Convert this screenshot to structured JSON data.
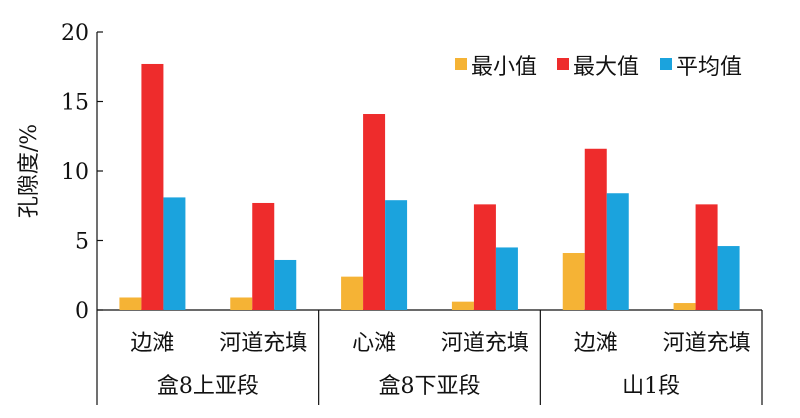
{
  "chart_data": {
    "type": "bar",
    "ylabel": "孔隙度/%",
    "ylim": [
      0,
      20
    ],
    "yticks": [
      0,
      5,
      10,
      15,
      20
    ],
    "grid": false,
    "legend_position": "top-right",
    "categories": [
      "边滩",
      "河道充填",
      "心滩",
      "河道充填",
      "边滩",
      "河道充填"
    ],
    "groups": [
      {
        "label": "盒8上亚段",
        "span": 2
      },
      {
        "label": "盒8下亚段",
        "span": 2
      },
      {
        "label": "山1段",
        "span": 2
      }
    ],
    "series": [
      {
        "name": "最小值",
        "color": "#F5B335",
        "values": [
          0.9,
          0.9,
          2.4,
          0.6,
          4.1,
          0.5
        ]
      },
      {
        "name": "最大值",
        "color": "#EE2C2C",
        "values": [
          17.7,
          7.7,
          14.1,
          7.6,
          11.6,
          7.6
        ]
      },
      {
        "name": "平均值",
        "color": "#1BA3DD",
        "values": [
          8.1,
          3.6,
          7.9,
          4.5,
          8.4,
          4.6
        ]
      }
    ]
  }
}
